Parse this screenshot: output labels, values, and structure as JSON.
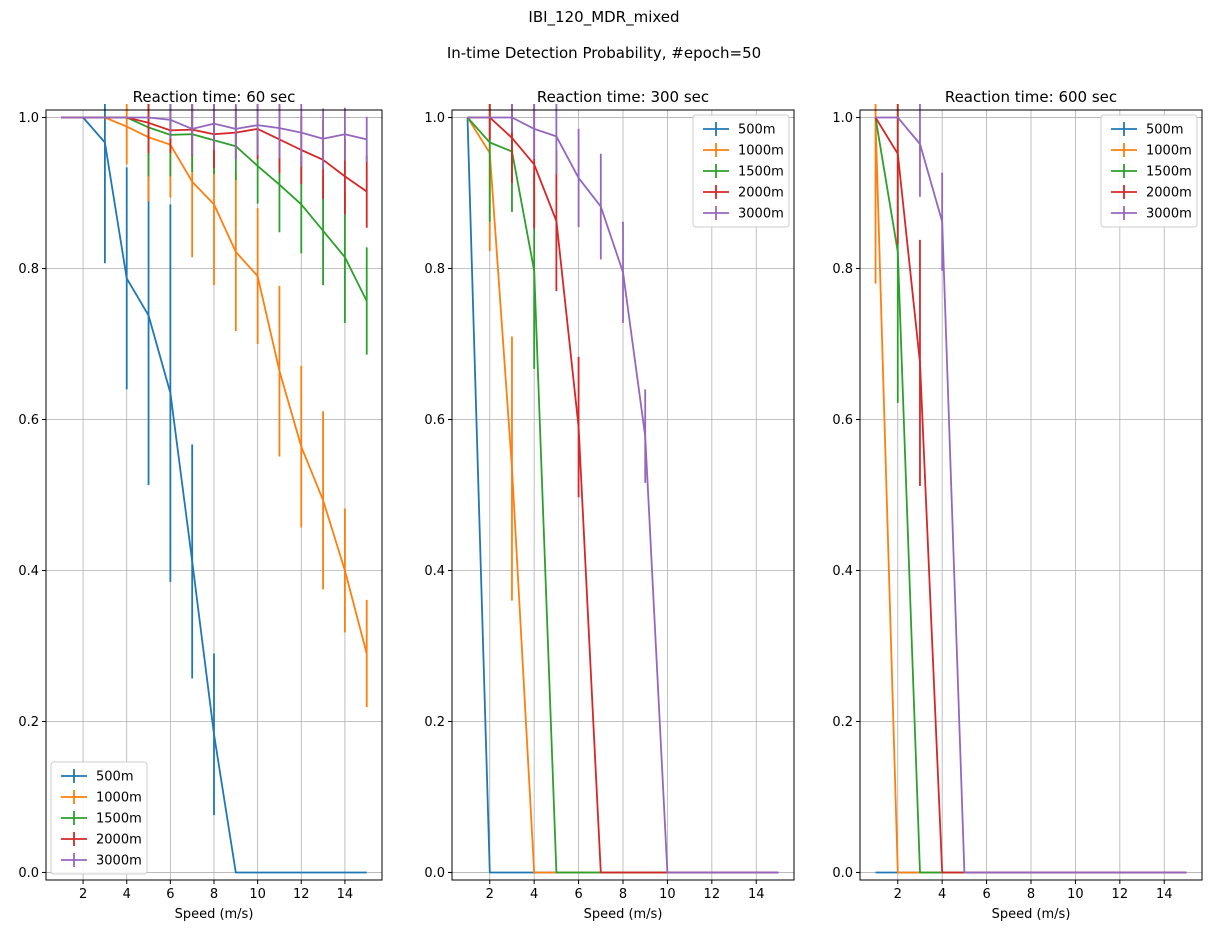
{
  "figure": {
    "suptitle": "IBI_120_MDR_mixed",
    "subtitle": "In-time Detection Probability, #epoch=50"
  },
  "colors": {
    "500m": "#1f77b4",
    "1000m": "#ff7f0e",
    "1500m": "#2ca02c",
    "2000m": "#d62728",
    "3000m": "#9467bd",
    "grid": "#b0b0b0"
  },
  "chart_data": [
    {
      "type": "line",
      "title": "Reaction time: 60 sec",
      "xlabel": "Speed (m/s)",
      "ylabel": "",
      "xlim": [
        0.3,
        15.7
      ],
      "ylim": [
        -0.01,
        1.01
      ],
      "xticks": [
        2,
        4,
        6,
        8,
        10,
        12,
        14
      ],
      "yticks": [
        0.0,
        0.2,
        0.4,
        0.6,
        0.8,
        1.0
      ],
      "grid": true,
      "legend_position": "bottom-left",
      "x": [
        1,
        2,
        3,
        4,
        5,
        6,
        7,
        8,
        9,
        10,
        11,
        12,
        13,
        14,
        15
      ],
      "series": [
        {
          "name": "500m",
          "values": [
            1.0,
            1.0,
            0.967,
            0.787,
            0.738,
            0.635,
            0.412,
            0.183,
            0.0,
            0.0,
            0.0,
            0.0,
            0.0,
            0.0,
            0.0
          ],
          "errors": [
            0,
            0,
            0.16,
            0.147,
            0.225,
            0.25,
            0.155,
            0.107,
            0,
            0,
            0,
            0,
            0,
            0,
            0
          ]
        },
        {
          "name": "1000m",
          "values": [
            1.0,
            1.0,
            1.0,
            0.988,
            0.974,
            0.964,
            0.915,
            0.885,
            0.822,
            0.79,
            0.664,
            0.564,
            0.493,
            0.4,
            0.29
          ],
          "errors": [
            0,
            0,
            0,
            0.05,
            0.085,
            0.07,
            0.1,
            0.107,
            0.105,
            0.09,
            0.113,
            0.107,
            0.118,
            0.082,
            0.071
          ]
        },
        {
          "name": "1500m",
          "values": [
            1.0,
            1.0,
            1.0,
            1.0,
            0.987,
            0.977,
            0.978,
            0.97,
            0.962,
            0.936,
            0.911,
            0.885,
            0.85,
            0.815,
            0.757
          ],
          "errors": [
            0,
            0,
            0,
            0,
            0.065,
            0.055,
            0.05,
            0.045,
            0.045,
            0.05,
            0.063,
            0.065,
            0.072,
            0.087,
            0.071
          ]
        },
        {
          "name": "2000m",
          "values": [
            1.0,
            1.0,
            1.0,
            1.0,
            0.993,
            0.983,
            0.984,
            0.978,
            0.98,
            0.985,
            0.971,
            0.957,
            0.944,
            0.922,
            0.902
          ],
          "errors": [
            0,
            0,
            0,
            0,
            0.04,
            0.03,
            0.035,
            0.045,
            0.035,
            0.04,
            0.045,
            0.045,
            0.052,
            0.05,
            0.048
          ]
        },
        {
          "name": "3000m",
          "values": [
            1.0,
            1.0,
            1.0,
            1.0,
            1.0,
            0.997,
            0.985,
            0.992,
            0.985,
            0.99,
            0.986,
            0.98,
            0.972,
            0.978,
            0.971
          ],
          "errors": [
            0,
            0,
            0,
            0,
            0,
            0.025,
            0.035,
            0.035,
            0.04,
            0.04,
            0.04,
            0.045,
            0.04,
            0.035,
            0.03
          ]
        }
      ]
    },
    {
      "type": "line",
      "title": "Reaction time: 300 sec",
      "xlabel": "Speed (m/s)",
      "ylabel": "",
      "xlim": [
        0.3,
        15.7
      ],
      "ylim": [
        -0.01,
        1.01
      ],
      "xticks": [
        2,
        4,
        6,
        8,
        10,
        12,
        14
      ],
      "yticks": [
        0.0,
        0.2,
        0.4,
        0.6,
        0.8,
        1.0
      ],
      "grid": true,
      "legend_position": "top-right",
      "x": [
        1,
        2,
        3,
        4,
        5,
        6,
        7,
        8,
        9,
        10,
        11,
        12,
        13,
        14,
        15
      ],
      "series": [
        {
          "name": "500m",
          "values": [
            1.0,
            0,
            0,
            0,
            0,
            0,
            0,
            0,
            0,
            0,
            0,
            0,
            0,
            0,
            0
          ],
          "errors": [
            0,
            0,
            0,
            0,
            0,
            0,
            0,
            0,
            0,
            0,
            0,
            0,
            0,
            0,
            0
          ]
        },
        {
          "name": "1000m",
          "values": [
            1.0,
            0.953,
            0.535,
            0,
            0,
            0,
            0,
            0,
            0,
            0,
            0,
            0,
            0,
            0,
            0
          ],
          "errors": [
            0,
            0.13,
            0.175,
            0,
            0,
            0,
            0,
            0,
            0,
            0,
            0,
            0,
            0,
            0,
            0
          ]
        },
        {
          "name": "1500m",
          "values": [
            1.0,
            0.967,
            0.955,
            0.797,
            0,
            0,
            0,
            0,
            0,
            0,
            0,
            0,
            0,
            0,
            0
          ],
          "errors": [
            0,
            0.105,
            0.08,
            0.13,
            0,
            0,
            0,
            0,
            0,
            0,
            0,
            0,
            0,
            0,
            0
          ]
        },
        {
          "name": "2000m",
          "values": [
            1.0,
            1.0,
            0.973,
            0.938,
            0.863,
            0.59,
            0,
            0,
            0,
            0,
            0,
            0,
            0,
            0,
            0
          ],
          "errors": [
            0,
            0.03,
            0.06,
            0.085,
            0.093,
            0.093,
            0,
            0,
            0,
            0,
            0,
            0,
            0,
            0,
            0
          ]
        },
        {
          "name": "3000m",
          "values": [
            1.0,
            1.0,
            1.0,
            0.985,
            0.975,
            0.92,
            0.882,
            0.795,
            0.578,
            0,
            0,
            0,
            0,
            0,
            0
          ],
          "errors": [
            0,
            0,
            0.02,
            0.04,
            0.05,
            0.065,
            0.07,
            0.067,
            0.062,
            0,
            0,
            0,
            0,
            0,
            0
          ]
        }
      ]
    },
    {
      "type": "line",
      "title": "Reaction time: 600 sec",
      "xlabel": "Speed (m/s)",
      "ylabel": "",
      "xlim": [
        0.3,
        15.7
      ],
      "ylim": [
        -0.01,
        1.01
      ],
      "xticks": [
        2,
        4,
        6,
        8,
        10,
        12,
        14
      ],
      "yticks": [
        0.0,
        0.2,
        0.4,
        0.6,
        0.8,
        1.0
      ],
      "grid": true,
      "legend_position": "top-right",
      "x": [
        1,
        2,
        3,
        4,
        5,
        6,
        7,
        8,
        9,
        10,
        11,
        12,
        13,
        14,
        15
      ],
      "series": [
        {
          "name": "500m",
          "values": [
            0,
            0,
            0,
            0,
            0,
            0,
            0,
            0,
            0,
            0,
            0,
            0,
            0,
            0,
            0
          ],
          "errors": [
            0,
            0,
            0,
            0,
            0,
            0,
            0,
            0,
            0,
            0,
            0,
            0,
            0,
            0,
            0
          ]
        },
        {
          "name": "1000m",
          "values": [
            1.0,
            0,
            0,
            0,
            0,
            0,
            0,
            0,
            0,
            0,
            0,
            0,
            0,
            0,
            0
          ],
          "errors": [
            0.22,
            0,
            0,
            0,
            0,
            0,
            0,
            0,
            0,
            0,
            0,
            0,
            0,
            0,
            0
          ]
        },
        {
          "name": "1500m",
          "values": [
            1.0,
            0.822,
            0,
            0,
            0,
            0,
            0,
            0,
            0,
            0,
            0,
            0,
            0,
            0,
            0
          ],
          "errors": [
            0,
            0.2,
            0,
            0,
            0,
            0,
            0,
            0,
            0,
            0,
            0,
            0,
            0,
            0,
            0
          ]
        },
        {
          "name": "2000m",
          "values": [
            1.0,
            0.952,
            0.675,
            0,
            0,
            0,
            0,
            0,
            0,
            0,
            0,
            0,
            0,
            0,
            0
          ],
          "errors": [
            0,
            0.12,
            0.163,
            0,
            0,
            0,
            0,
            0,
            0,
            0,
            0,
            0,
            0,
            0,
            0
          ]
        },
        {
          "name": "3000m",
          "values": [
            1.0,
            1.0,
            0.965,
            0.862,
            0,
            0,
            0,
            0,
            0,
            0,
            0,
            0,
            0,
            0,
            0
          ],
          "errors": [
            0,
            0,
            0.07,
            0.065,
            0,
            0,
            0,
            0,
            0,
            0,
            0,
            0,
            0,
            0,
            0
          ]
        }
      ]
    }
  ]
}
